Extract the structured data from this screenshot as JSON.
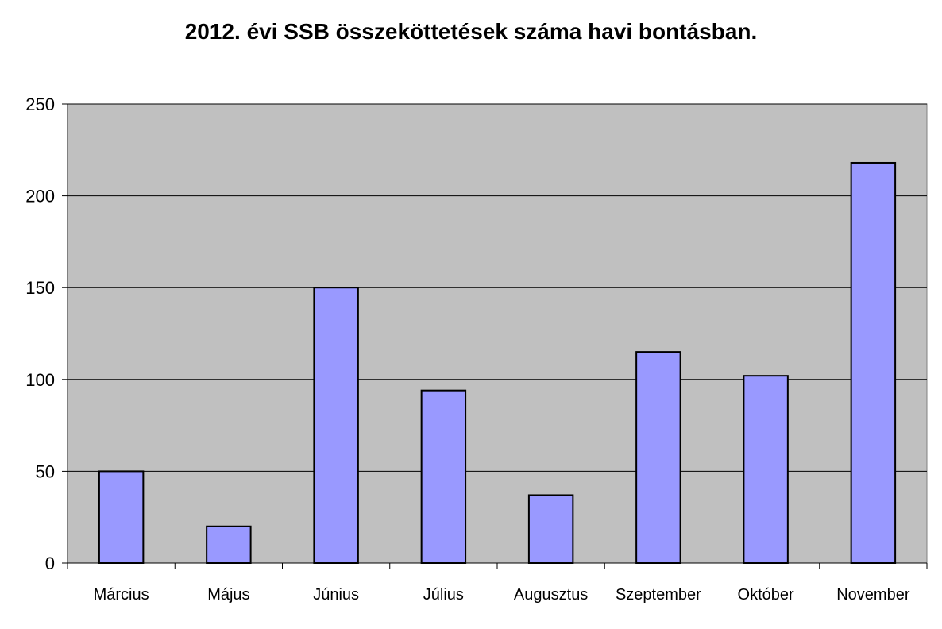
{
  "chart_data": {
    "type": "bar",
    "title": "2012. évi SSB összeköttetések száma havi bontásban.",
    "xlabel": "",
    "ylabel": "",
    "categories": [
      "Március",
      "Május",
      "Június",
      "Július",
      "Augusztus",
      "Szeptember",
      "Október",
      "November"
    ],
    "values": [
      50,
      20,
      150,
      94,
      37,
      115,
      102,
      218
    ],
    "ylim": [
      0,
      250
    ],
    "yticks": [
      "0",
      "50",
      "100",
      "150",
      "200",
      "250"
    ],
    "grid": true,
    "legend": "none",
    "colors": {
      "bar_fill": "#9999ff",
      "bar_stroke": "#000000",
      "plot_background": "#c0c0c0",
      "gridline": "#000000"
    }
  }
}
